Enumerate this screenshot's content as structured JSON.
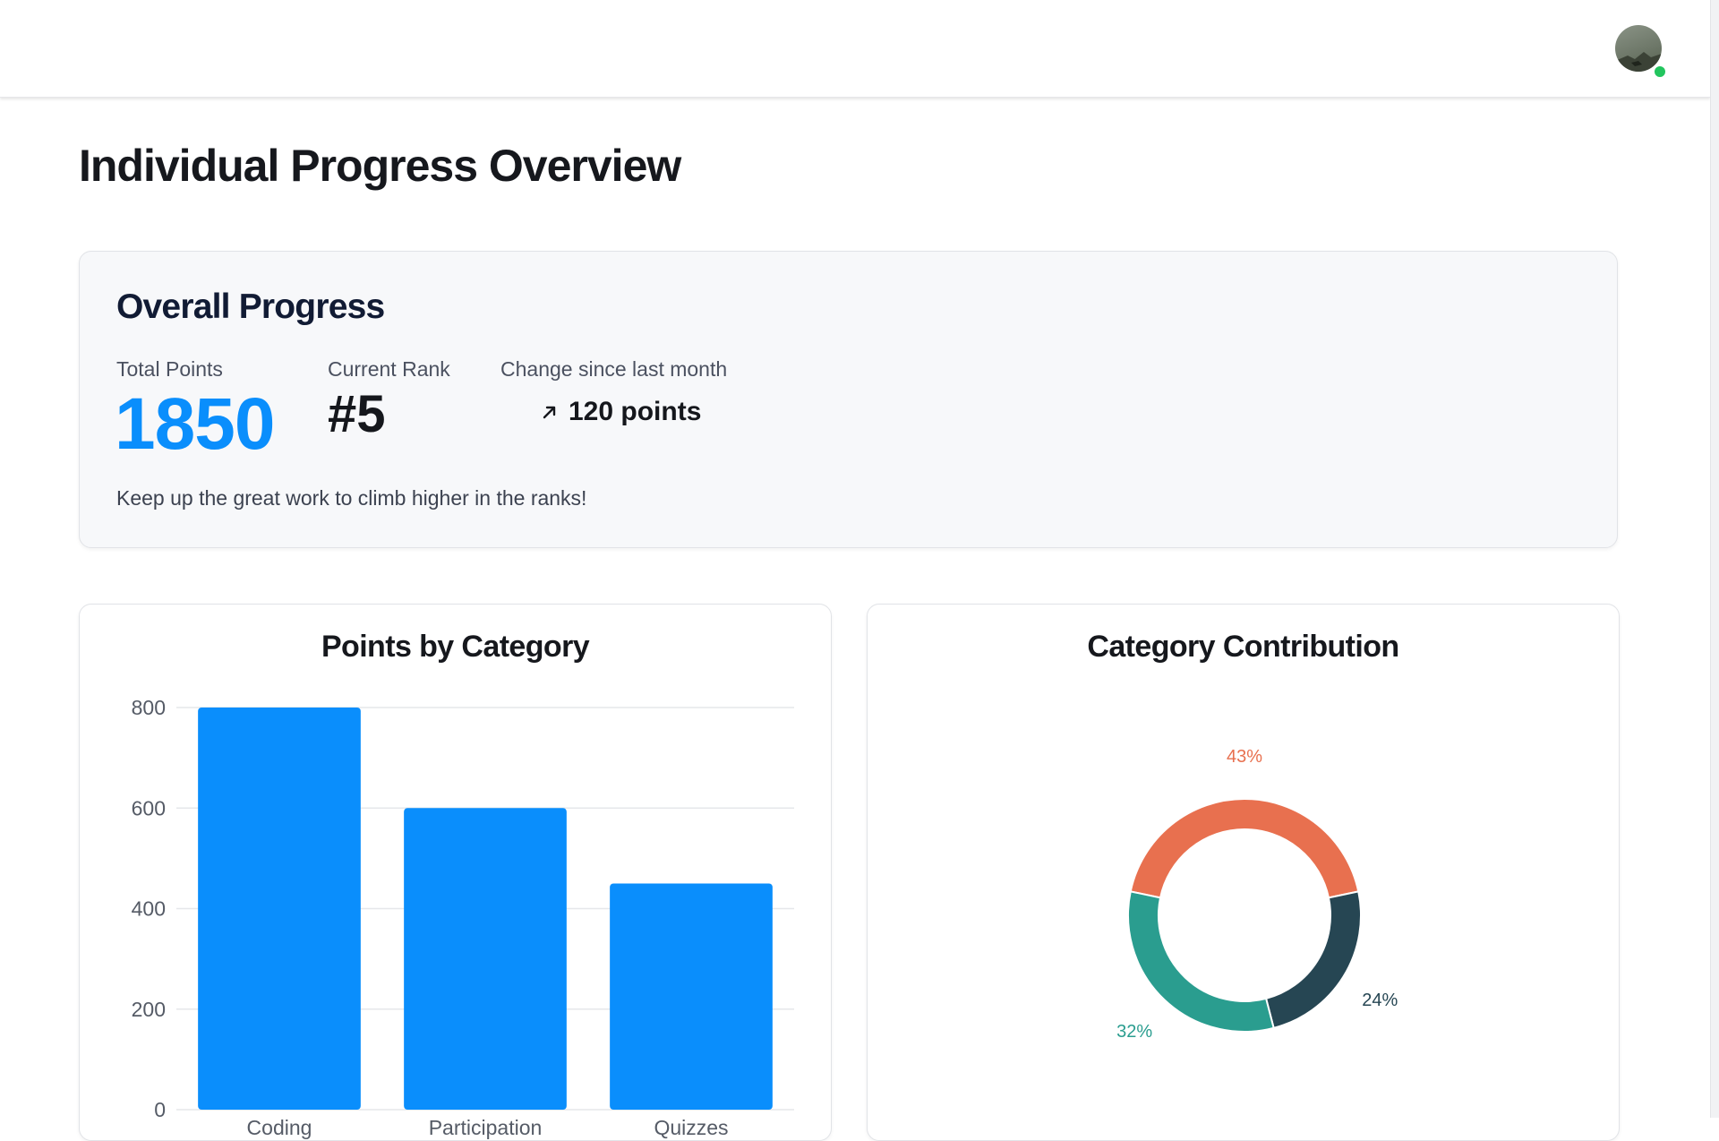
{
  "header": {
    "avatar_alt": "user avatar",
    "online": true
  },
  "page": {
    "title": "Individual Progress Overview"
  },
  "overall": {
    "title": "Overall Progress",
    "total_points_label": "Total Points",
    "total_points_value": "1850",
    "current_rank_label": "Current Rank",
    "current_rank_value": "#5",
    "change_label": "Change since last month",
    "change_value": "120 points",
    "change_icon": "arrow-up-right-icon",
    "message": "Keep up the great work to climb higher in the ranks!"
  },
  "colors": {
    "accent": "#0a8efc",
    "online": "#22c55e",
    "slice_orange": "#e8704f",
    "slice_dark": "#264653",
    "slice_teal": "#2a9d8f"
  },
  "chart_data": [
    {
      "type": "bar",
      "title": "Points by Category",
      "categories": [
        "Coding",
        "Participation",
        "Quizzes"
      ],
      "values": [
        800,
        600,
        450
      ],
      "yticks": [
        "0",
        "200",
        "400",
        "600",
        "800"
      ],
      "ylim": [
        0,
        800
      ],
      "grid": true,
      "color": "#0a8efc"
    },
    {
      "type": "pie",
      "title": "Category Contribution",
      "donut": true,
      "slices": [
        {
          "label": "43%",
          "value": 43,
          "color": "#e8704f"
        },
        {
          "label": "24%",
          "value": 24,
          "color": "#264653"
        },
        {
          "label": "32%",
          "value": 32,
          "color": "#2a9d8f"
        }
      ]
    }
  ]
}
